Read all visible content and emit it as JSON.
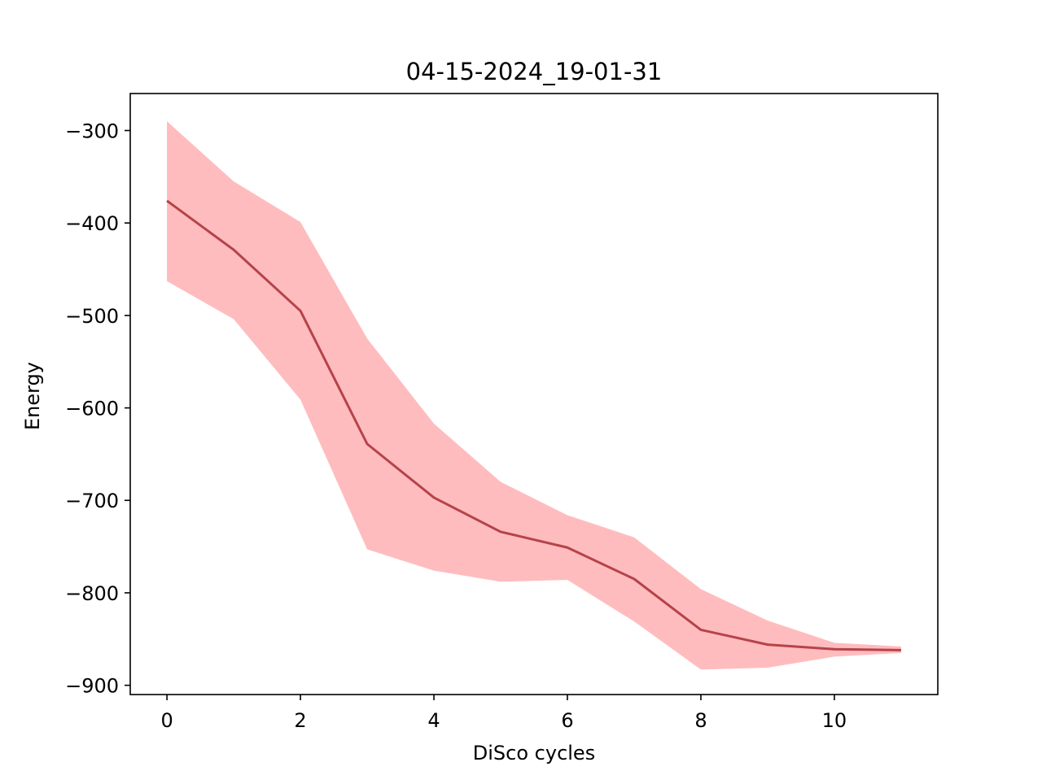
{
  "chart_data": {
    "type": "line",
    "title": "04-15-2024_19-01-31",
    "xlabel": "DiSco cycles",
    "ylabel": "Energy",
    "xlim": [
      -0.55,
      11.55
    ],
    "ylim": [
      -910,
      -260
    ],
    "xticks": [
      0,
      2,
      4,
      6,
      8,
      10
    ],
    "yticks": [
      -300,
      -400,
      -500,
      -600,
      -700,
      -800,
      -900
    ],
    "ytick_labels": [
      "−300",
      "−400",
      "−500",
      "−600",
      "−700",
      "−800",
      "−900"
    ],
    "grid": false,
    "x": [
      0,
      1,
      2,
      3,
      4,
      5,
      6,
      7,
      8,
      9,
      10,
      11
    ],
    "series": [
      {
        "values": [
          -376,
          -429,
          -495,
          -639,
          -697,
          -734,
          -751,
          -785,
          -840,
          -856,
          -861,
          -862
        ],
        "lower": [
          -463,
          -504,
          -591,
          -753,
          -776,
          -788,
          -786,
          -831,
          -883,
          -881,
          -869,
          -865
        ],
        "upper": [
          -290,
          -355,
          -399,
          -525,
          -617,
          -680,
          -716,
          -740,
          -796,
          -830,
          -854,
          -858
        ],
        "color": "#b5434a",
        "band_color": "#ffbcbe"
      }
    ]
  }
}
